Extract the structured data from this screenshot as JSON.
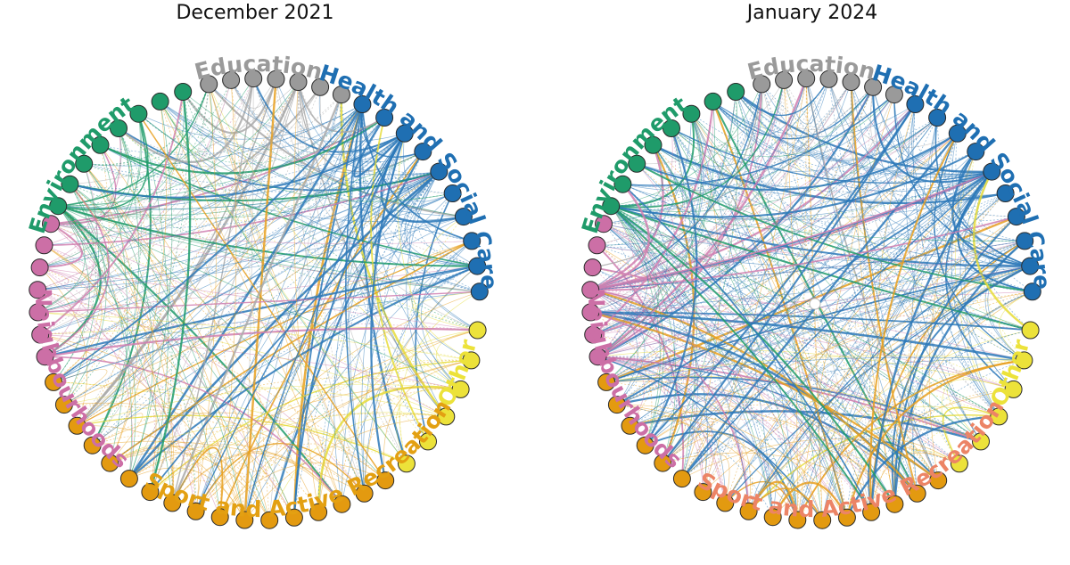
{
  "panels": [
    {
      "title": "December 2021",
      "groups": [
        {
          "label": "Education",
          "color": "#9a9a9a"
        },
        {
          "label": "Health and Social Care",
          "color": "#1f6fb2"
        },
        {
          "label": "Other",
          "color": "#ece23a"
        },
        {
          "label": "Sport and Active Recreation",
          "color": "#e3a012"
        },
        {
          "label": "Neighbourhoods",
          "color": "#cc6fa6"
        },
        {
          "label": "Environment",
          "color": "#1f9b6a"
        }
      ]
    },
    {
      "title": "January 2024",
      "groups": [
        {
          "label": "Education",
          "color": "#9a9a9a"
        },
        {
          "label": "Health and Social Care",
          "color": "#1f6fb2"
        },
        {
          "label": "Other",
          "color": "#ece23a"
        },
        {
          "label": "Sport and Active Recreation",
          "color": "#ec8466"
        },
        {
          "label": "Neighbourhoods",
          "color": "#cc6fa6"
        },
        {
          "label": "Environment",
          "color": "#1f9b6a"
        }
      ]
    }
  ],
  "node_colors": {
    "Education": "#9a9a9a",
    "Health and Social Care": "#1f6fb2",
    "Other": "#ece23a",
    "Sport and Active Recreation": "#e39a10",
    "Neighbourhoods": "#cc6fa6",
    "Environment": "#1f9b6a"
  }
}
